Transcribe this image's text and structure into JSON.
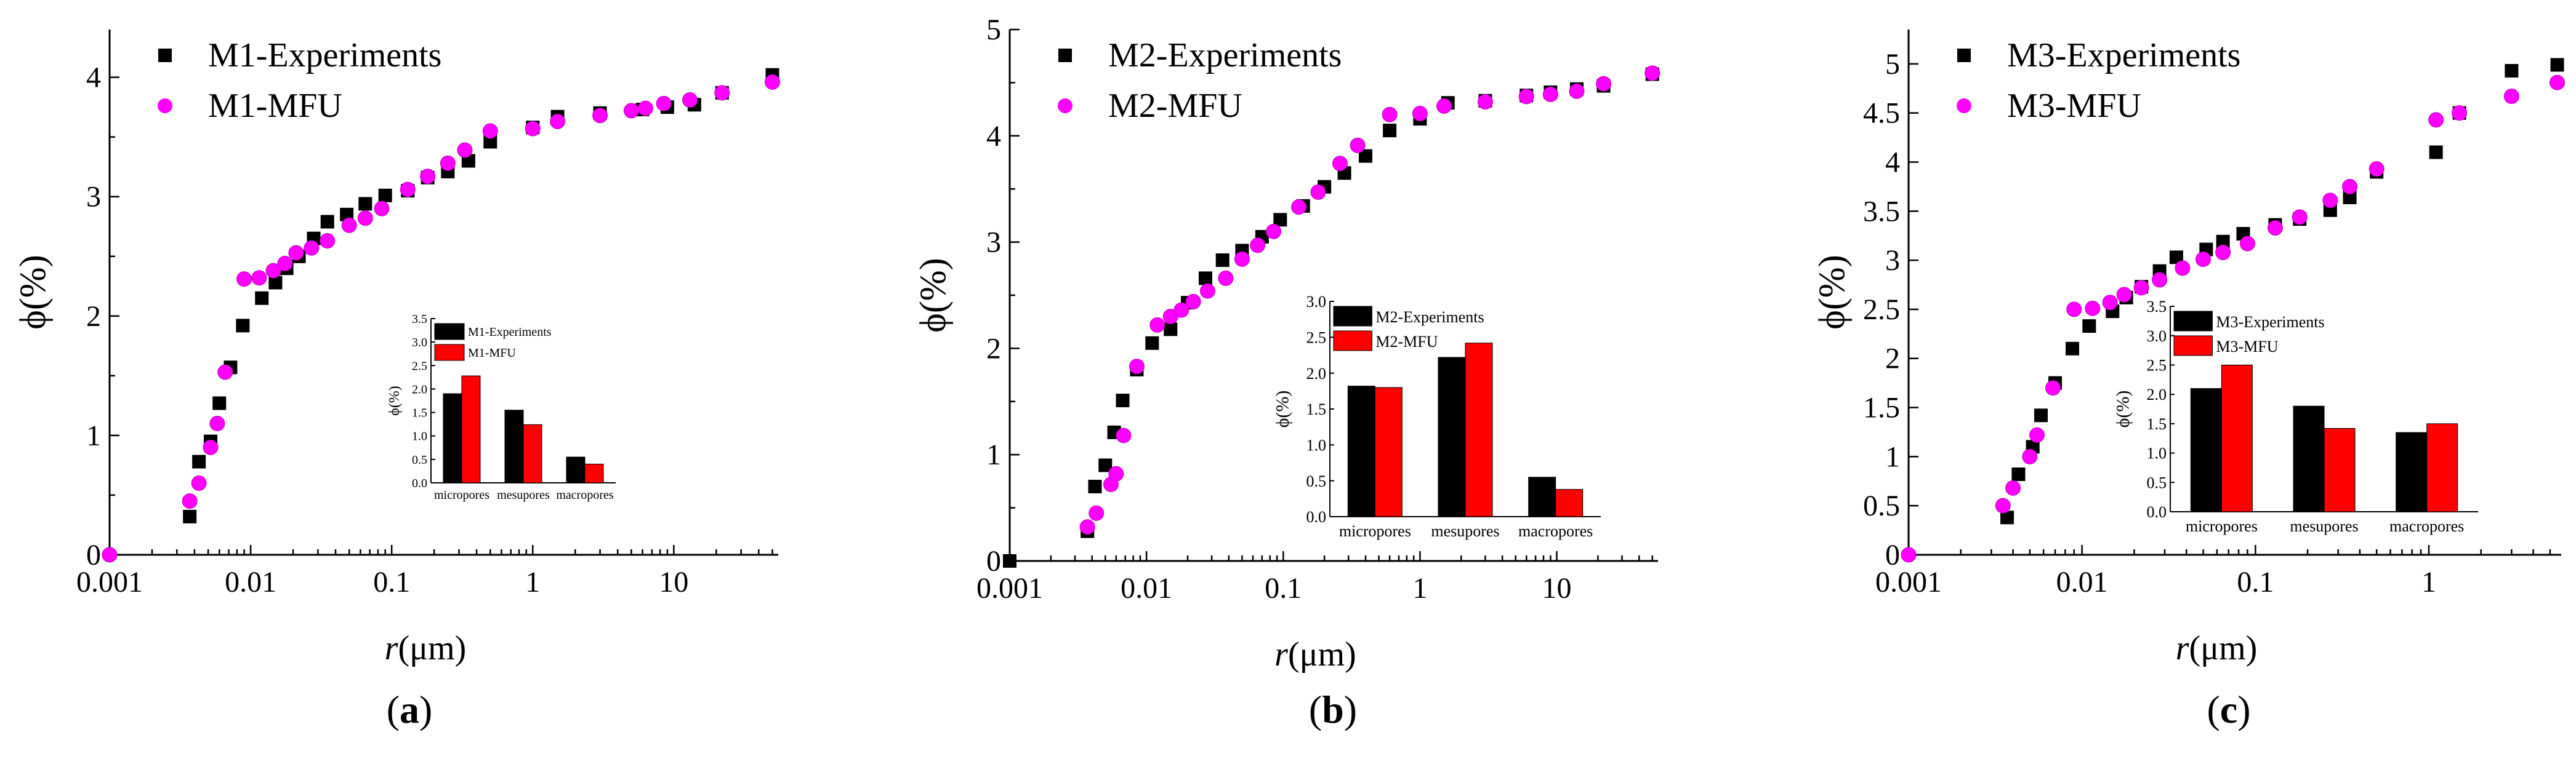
{
  "colors": {
    "experiments": "#000000",
    "mfu": "#ff00ff",
    "bar_mfu": "#ff0000",
    "bar_exp": "#000000"
  },
  "panels": [
    {
      "id": "a",
      "caption": "a"
    },
    {
      "id": "b",
      "caption": "b"
    },
    {
      "id": "c",
      "caption": "c"
    }
  ],
  "chart_data": [
    {
      "type": "scatter",
      "xscale": "log",
      "xlabel_italic": "r",
      "xlabel_rest": "(μm)",
      "ylabel": "ϕ(%)",
      "xlim": [
        0.001,
        55
      ],
      "ylim": [
        0,
        4.4
      ],
      "xticks": [
        0.001,
        0.01,
        0.1,
        1,
        10
      ],
      "xtick_labels": [
        "0.001",
        "0.01",
        "0.1",
        "1",
        "10"
      ],
      "yticks": [
        0,
        1,
        2,
        3,
        4
      ],
      "ytick_labels": [
        "0",
        "1",
        "2",
        "3",
        "4"
      ],
      "legend_position": "top-left",
      "series": [
        {
          "name": "M1-Experiments",
          "marker": "square",
          "x": [
            0.0037,
            0.0043,
            0.0052,
            0.006,
            0.0072,
            0.0088,
            0.012,
            0.015,
            0.018,
            0.022,
            0.028,
            0.035,
            0.048,
            0.065,
            0.09,
            0.13,
            0.18,
            0.25,
            0.35,
            0.5,
            1.0,
            1.5,
            3.0,
            6.0,
            9.0,
            14.0,
            22.0,
            50.0
          ],
          "y": [
            0.32,
            0.78,
            0.95,
            1.27,
            1.57,
            1.92,
            2.15,
            2.28,
            2.4,
            2.5,
            2.65,
            2.79,
            2.85,
            2.94,
            3.01,
            3.05,
            3.16,
            3.21,
            3.3,
            3.46,
            3.58,
            3.67,
            3.7,
            3.73,
            3.75,
            3.77,
            3.87,
            4.02
          ]
        },
        {
          "name": "M1-MFU",
          "marker": "circle",
          "x": [
            0.001,
            0.0037,
            0.0043,
            0.0052,
            0.0058,
            0.0066,
            0.009,
            0.0115,
            0.0145,
            0.0175,
            0.021,
            0.027,
            0.035,
            0.05,
            0.065,
            0.085,
            0.13,
            0.18,
            0.25,
            0.33,
            0.5,
            1.0,
            1.5,
            3.0,
            5.0,
            6.3,
            8.5,
            13.0,
            22.0,
            50.0
          ],
          "y": [
            0.0,
            0.45,
            0.6,
            0.9,
            1.1,
            1.53,
            2.31,
            2.32,
            2.38,
            2.44,
            2.53,
            2.57,
            2.63,
            2.76,
            2.82,
            2.9,
            3.06,
            3.17,
            3.28,
            3.39,
            3.55,
            3.57,
            3.63,
            3.68,
            3.72,
            3.74,
            3.78,
            3.81,
            3.87,
            3.96
          ]
        }
      ],
      "inset": {
        "type": "bar",
        "categories": [
          "micropores",
          "mesupores",
          "macropores"
        ],
        "ylabel": "ϕ(%)",
        "ylim": [
          0,
          3.5
        ],
        "yticks": [
          "0.0",
          "0.5",
          "1.0",
          "1.5",
          "2.0",
          "2.5",
          "3.0",
          "3.5"
        ],
        "series": [
          {
            "name": "M1-Experiments",
            "values": [
              1.9,
              1.55,
              0.55
            ]
          },
          {
            "name": "M1-MFU",
            "values": [
              2.28,
              1.24,
              0.4
            ]
          }
        ]
      }
    },
    {
      "type": "scatter",
      "xscale": "log",
      "xlabel_italic": "r",
      "xlabel_rest": "(μm)",
      "ylabel": "ϕ(%)",
      "xlim": [
        0.001,
        55
      ],
      "ylim": [
        0,
        5
      ],
      "xticks": [
        0.001,
        0.01,
        0.1,
        1,
        10
      ],
      "xtick_labels": [
        "0.001",
        "0.01",
        "0.1",
        "1",
        "10"
      ],
      "yticks": [
        0,
        1,
        2,
        3,
        4,
        5
      ],
      "ytick_labels": [
        "0",
        "1",
        "2",
        "3",
        "4",
        "5"
      ],
      "legend_position": "top-left",
      "series": [
        {
          "name": "M2-Experiments",
          "marker": "square",
          "x": [
            0.001,
            0.0037,
            0.0042,
            0.005,
            0.0058,
            0.0067,
            0.0085,
            0.011,
            0.015,
            0.02,
            0.027,
            0.036,
            0.05,
            0.07,
            0.095,
            0.14,
            0.2,
            0.28,
            0.4,
            0.6,
            1.0,
            1.6,
            3.0,
            6.0,
            9.0,
            14.0,
            22.0,
            50.0
          ],
          "y": [
            0.0,
            0.28,
            0.7,
            0.9,
            1.21,
            1.51,
            1.8,
            2.05,
            2.18,
            2.43,
            2.66,
            2.83,
            2.92,
            3.05,
            3.21,
            3.34,
            3.52,
            3.65,
            3.81,
            4.05,
            4.16,
            4.31,
            4.33,
            4.38,
            4.41,
            4.44,
            4.47,
            4.58
          ]
        },
        {
          "name": "M2-MFU",
          "marker": "circle",
          "x": [
            0.0037,
            0.0043,
            0.0055,
            0.006,
            0.0068,
            0.0085,
            0.012,
            0.015,
            0.018,
            0.022,
            0.028,
            0.038,
            0.05,
            0.065,
            0.085,
            0.13,
            0.18,
            0.26,
            0.35,
            0.6,
            1.0,
            1.5,
            3.0,
            6.0,
            9.0,
            14.0,
            22.0,
            50.0
          ],
          "y": [
            0.32,
            0.45,
            0.72,
            0.82,
            1.18,
            1.83,
            2.22,
            2.3,
            2.36,
            2.44,
            2.54,
            2.66,
            2.84,
            2.97,
            3.1,
            3.33,
            3.47,
            3.74,
            3.91,
            4.2,
            4.21,
            4.28,
            4.32,
            4.37,
            4.39,
            4.42,
            4.49,
            4.59
          ]
        }
      ],
      "inset": {
        "type": "bar",
        "categories": [
          "micropores",
          "mesupores",
          "macropores"
        ],
        "ylabel": "ϕ(%)",
        "ylim": [
          0,
          3.0
        ],
        "yticks": [
          "0.0",
          "0.5",
          "1.0",
          "1.5",
          "2.0",
          "2.5",
          "3.0"
        ],
        "series": [
          {
            "name": "M2-Experiments",
            "values": [
              1.82,
              2.22,
              0.55
            ]
          },
          {
            "name": "M2-MFU",
            "values": [
              1.8,
              2.42,
              0.38
            ]
          }
        ]
      }
    },
    {
      "type": "scatter",
      "xscale": "log",
      "xlabel_italic": "r",
      "xlabel_rest": "(μm)",
      "ylabel": "ϕ(%)",
      "xlim": [
        0.001,
        5.8
      ],
      "ylim": [
        0,
        5.35
      ],
      "xticks": [
        0.001,
        0.01,
        0.1,
        1
      ],
      "xtick_labels": [
        "0.001",
        "0.01",
        "0.1",
        "1"
      ],
      "yticks": [
        0,
        0.5,
        1,
        1.5,
        2,
        2.5,
        3,
        3.5,
        4,
        4.5,
        5
      ],
      "ytick_labels": [
        "0",
        "0.5",
        "1",
        "1.5",
        "2",
        "2.5",
        "3",
        "3.5",
        "4",
        "4.5",
        "5"
      ],
      "legend_position": "top-left",
      "series": [
        {
          "name": "M3-Experiments",
          "marker": "square",
          "x": [
            0.0037,
            0.0043,
            0.0052,
            0.0058,
            0.007,
            0.0088,
            0.011,
            0.015,
            0.018,
            0.022,
            0.028,
            0.035,
            0.052,
            0.065,
            0.085,
            0.13,
            0.18,
            0.27,
            0.35,
            0.5,
            1.1,
            1.5,
            3.0,
            5.5
          ],
          "y": [
            0.38,
            0.82,
            1.1,
            1.42,
            1.75,
            2.1,
            2.33,
            2.48,
            2.62,
            2.73,
            2.89,
            3.03,
            3.11,
            3.19,
            3.27,
            3.36,
            3.42,
            3.51,
            3.64,
            3.9,
            4.1,
            4.5,
            4.93,
            4.99
          ]
        },
        {
          "name": "M3-MFU",
          "marker": "circle",
          "x": [
            0.001,
            0.0035,
            0.004,
            0.005,
            0.0055,
            0.0068,
            0.009,
            0.0115,
            0.0145,
            0.0175,
            0.022,
            0.028,
            0.038,
            0.05,
            0.065,
            0.09,
            0.13,
            0.18,
            0.27,
            0.35,
            0.5,
            1.1,
            1.5,
            3.0,
            5.5
          ],
          "y": [
            0.0,
            0.5,
            0.68,
            1.0,
            1.22,
            1.7,
            2.5,
            2.51,
            2.57,
            2.65,
            2.72,
            2.8,
            2.92,
            3.01,
            3.08,
            3.17,
            3.33,
            3.44,
            3.61,
            3.75,
            3.93,
            4.43,
            4.5,
            4.67,
            4.81
          ]
        }
      ],
      "inset": {
        "type": "bar",
        "categories": [
          "micropores",
          "mesupores",
          "macropores"
        ],
        "ylabel": "ϕ(%)",
        "ylim": [
          0,
          3.5
        ],
        "yticks": [
          "0.0",
          "0.5",
          "1.0",
          "1.5",
          "2.0",
          "2.5",
          "3.0",
          "3.5"
        ],
        "series": [
          {
            "name": "M3-Experiments",
            "values": [
              2.1,
              1.8,
              1.35
            ]
          },
          {
            "name": "M3-MFU",
            "values": [
              2.5,
              1.42,
              1.5
            ]
          }
        ]
      }
    }
  ]
}
